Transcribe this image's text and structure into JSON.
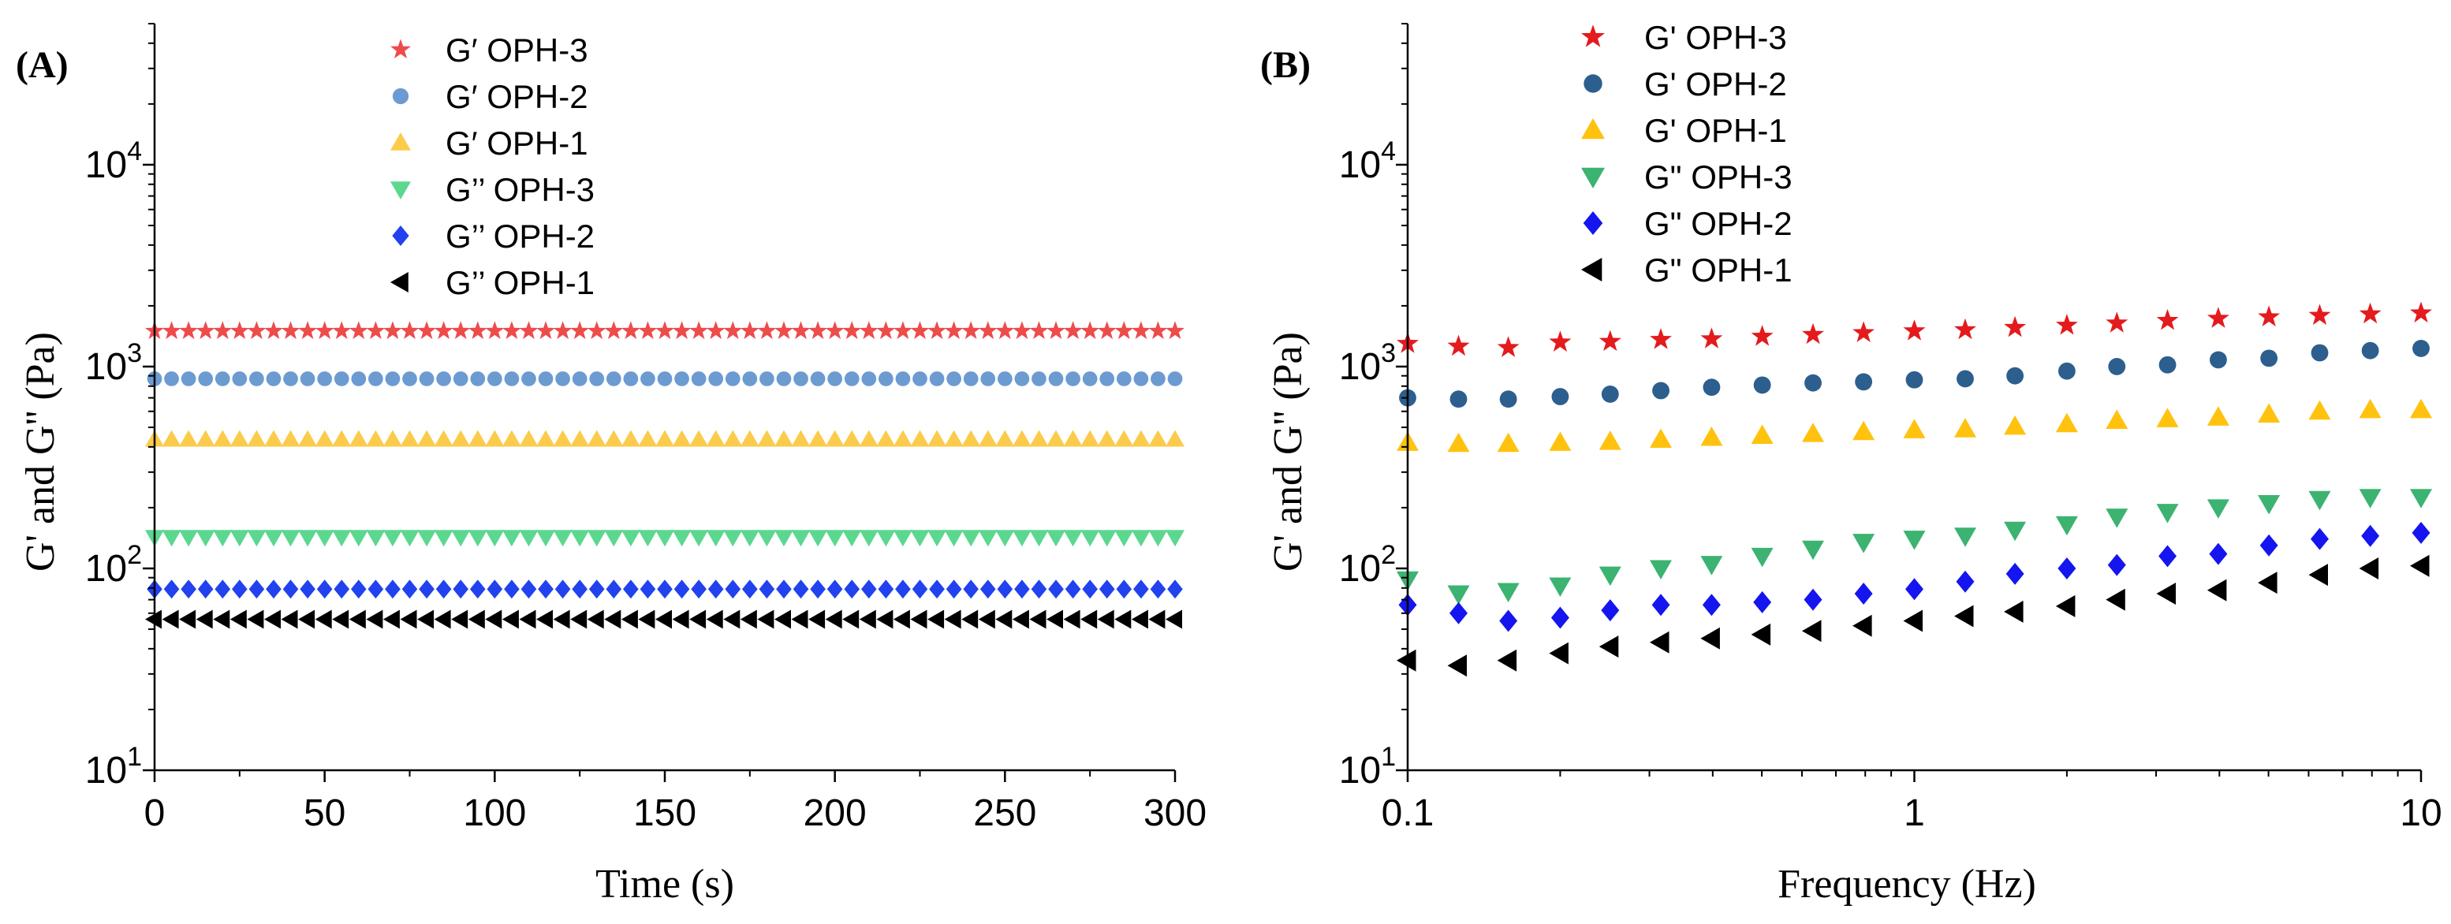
{
  "chart_data": [
    {
      "panel_label": "(A)",
      "type": "scatter",
      "x_scale": "linear",
      "y_scale": "log",
      "xlabel": "Time (s)",
      "ylabel": "G' and G'' (Pa)",
      "xlim": [
        0,
        300
      ],
      "ylim": [
        10,
        50000
      ],
      "x_ticks": [
        {
          "value": 0,
          "label": "0"
        },
        {
          "value": 50,
          "label": "50"
        },
        {
          "value": 100,
          "label": "100"
        },
        {
          "value": 150,
          "label": "150"
        },
        {
          "value": 200,
          "label": "200"
        },
        {
          "value": 250,
          "label": "250"
        },
        {
          "value": 300,
          "label": "300"
        }
      ],
      "y_ticks": [
        {
          "value": 10,
          "base": "10",
          "exp": "1"
        },
        {
          "value": 100,
          "base": "10",
          "exp": "2"
        },
        {
          "value": 1000,
          "base": "10",
          "exp": "3"
        },
        {
          "value": 10000,
          "base": "10",
          "exp": "4"
        }
      ],
      "x": [
        0,
        5,
        10,
        15,
        20,
        25,
        30,
        35,
        40,
        45,
        50,
        55,
        60,
        65,
        70,
        75,
        80,
        85,
        90,
        95,
        100,
        105,
        110,
        115,
        120,
        125,
        130,
        135,
        140,
        145,
        150,
        155,
        160,
        165,
        170,
        175,
        180,
        185,
        190,
        195,
        200,
        205,
        210,
        215,
        220,
        225,
        230,
        235,
        240,
        245,
        250,
        255,
        260,
        265,
        270,
        275,
        280,
        285,
        290,
        295,
        300
      ],
      "series": [
        {
          "name": "G′ OPH-3",
          "marker": "star",
          "color": "#EE4B4B",
          "value": 1500
        },
        {
          "name": "G′ OPH-2",
          "marker": "circle",
          "color": "#6C9BD1",
          "value": 870
        },
        {
          "name": "G′ OPH-1",
          "marker": "triangle-up",
          "color": "#FBCB4C",
          "value": 435
        },
        {
          "name": "G’’ OPH-3",
          "marker": "triangle-down",
          "color": "#5CD78F",
          "value": 143
        },
        {
          "name": "G’’ OPH-2",
          "marker": "diamond",
          "color": "#2142EE",
          "value": 79
        },
        {
          "name": "G’’ OPH-1",
          "marker": "triangle-left",
          "color": "#000000",
          "value": 56
        }
      ]
    },
    {
      "panel_label": "(B)",
      "type": "scatter",
      "x_scale": "log",
      "y_scale": "log",
      "xlabel": "Frequency (Hz)",
      "ylabel": "G' and G'' (Pa)",
      "xlim": [
        0.1,
        10
      ],
      "ylim": [
        10,
        50000
      ],
      "x_ticks": [
        {
          "value": 0.1,
          "label": "0.1"
        },
        {
          "value": 1,
          "label": "1"
        },
        {
          "value": 10,
          "label": "10"
        }
      ],
      "y_ticks": [
        {
          "value": 10,
          "base": "10",
          "exp": "1"
        },
        {
          "value": 100,
          "base": "10",
          "exp": "2"
        },
        {
          "value": 1000,
          "base": "10",
          "exp": "3"
        },
        {
          "value": 10000,
          "base": "10",
          "exp": "4"
        }
      ],
      "x": [
        0.1,
        0.126,
        0.158,
        0.2,
        0.251,
        0.316,
        0.398,
        0.501,
        0.631,
        0.794,
        1,
        1.26,
        1.58,
        2,
        2.51,
        3.16,
        3.98,
        5.01,
        6.31,
        7.94,
        10
      ],
      "series": [
        {
          "name": "G' OPH-3",
          "marker": "star",
          "color": "#E41A1C",
          "values": [
            1300,
            1260,
            1240,
            1320,
            1330,
            1360,
            1370,
            1410,
            1440,
            1470,
            1500,
            1520,
            1560,
            1600,
            1640,
            1690,
            1730,
            1760,
            1790,
            1820,
            1840
          ]
        },
        {
          "name": "G' OPH-2",
          "marker": "circle",
          "color": "#2C5F8E",
          "values": [
            700,
            690,
            690,
            710,
            730,
            760,
            790,
            810,
            830,
            840,
            860,
            870,
            900,
            950,
            1000,
            1020,
            1080,
            1100,
            1170,
            1200,
            1230
          ]
        },
        {
          "name": "G' OPH-1",
          "marker": "triangle-up",
          "color": "#FFC20E",
          "values": [
            420,
            415,
            415,
            420,
            425,
            435,
            445,
            455,
            465,
            475,
            485,
            490,
            505,
            520,
            540,
            550,
            560,
            580,
            600,
            610,
            610
          ]
        },
        {
          "name": "G\" OPH-3",
          "marker": "triangle-down",
          "color": "#3CB371",
          "values": [
            88,
            75,
            77,
            82,
            93,
            100,
            105,
            115,
            125,
            135,
            140,
            145,
            155,
            165,
            180,
            190,
            200,
            210,
            220,
            225,
            225
          ]
        },
        {
          "name": "G\" OPH-2",
          "marker": "diamond",
          "color": "#1515F0",
          "values": [
            66,
            60,
            55,
            57,
            62,
            66,
            66,
            68,
            70,
            75,
            79,
            86,
            94,
            100,
            104,
            115,
            118,
            130,
            140,
            145,
            150
          ]
        },
        {
          "name": "G\" OPH-1",
          "marker": "triangle-left",
          "color": "#000000",
          "values": [
            35,
            33,
            35,
            38,
            41,
            43,
            45,
            47,
            49,
            52,
            55,
            58,
            61,
            65,
            70,
            75,
            78,
            85,
            93,
            100,
            103
          ]
        }
      ]
    }
  ]
}
